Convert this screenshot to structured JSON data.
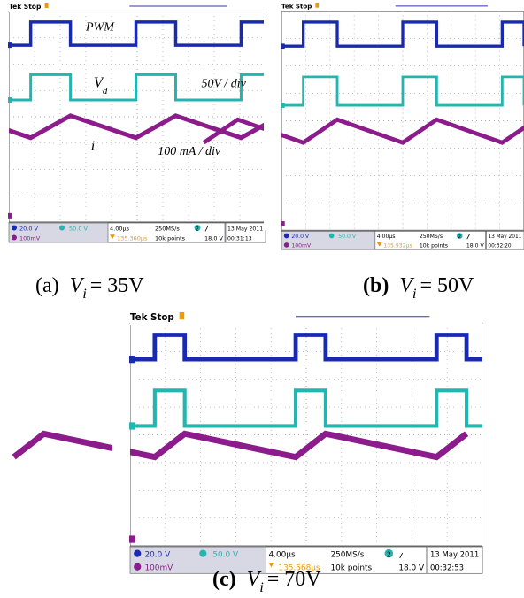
{
  "panels": [
    {
      "header": "Tek Stop",
      "ch1_scale": "20.0 V",
      "ch2_scale": "50.0 V",
      "ch3_scale": "100mV",
      "timebase": "4.00µs",
      "sample_rate": "250MS/s",
      "trigger_position": "135.360µs",
      "record_length": "10k points",
      "trigger_channel": "2",
      "trigger_level": "18.0 V",
      "date": "13 May 2011",
      "time": "00:31:13",
      "annotations": {
        "pwm": "PWM",
        "vd_var": "V",
        "vd_sub": "d",
        "vd_scale": "50V / div",
        "i_var": "i",
        "i_scale": "100 mA / div"
      },
      "caption": {
        "label": "(a)",
        "variable": "V",
        "subscript": "i",
        "equation": "= 35V"
      }
    },
    {
      "header": "Tek Stop",
      "ch1_scale": "20.0 V",
      "ch2_scale": "50.0 V",
      "ch3_scale": "100mV",
      "timebase": "4.00µs",
      "sample_rate": "250MS/s",
      "trigger_position": "135.932µs",
      "record_length": "10k points",
      "trigger_channel": "2",
      "trigger_level": "18.0 V",
      "date": "13 May 2011",
      "time": "00:32:20",
      "caption": {
        "label": "(b)",
        "variable": "V",
        "subscript": "i",
        "equation": "= 50V"
      }
    },
    {
      "header": "Tek Stop",
      "ch1_scale": "20.0 V",
      "ch2_scale": "50.0 V",
      "ch3_scale": "100mV",
      "timebase": "4.00µs",
      "sample_rate": "250MS/s",
      "trigger_position": "135.568µs",
      "record_length": "10k points",
      "trigger_channel": "2",
      "trigger_level": "18.0 V",
      "date": "13 May 2011",
      "time": "00:32:53",
      "caption": {
        "label": "(c)",
        "variable": "V",
        "subscript": "i",
        "equation": "= 70V"
      }
    }
  ]
}
